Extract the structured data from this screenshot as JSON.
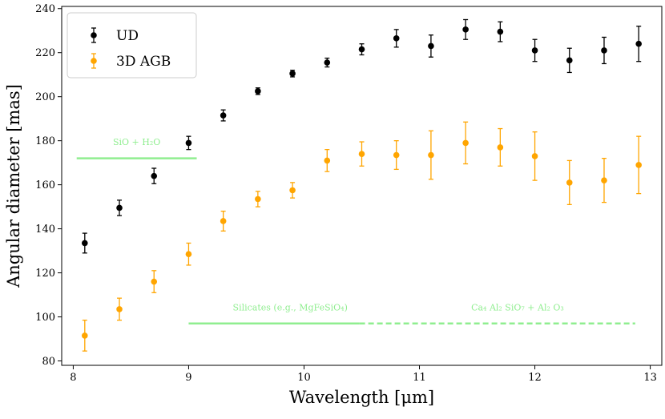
{
  "chart_data": {
    "type": "scatter",
    "xlabel": "Wavelength [μm]",
    "ylabel": "Angular diameter [mas]",
    "xlim": [
      7.9,
      13.1
    ],
    "ylim": [
      78,
      241
    ],
    "xticks": [
      8,
      9,
      10,
      11,
      12,
      13
    ],
    "yticks": [
      80,
      100,
      120,
      140,
      160,
      180,
      200,
      220,
      240
    ],
    "legend_position": "top-left",
    "series": [
      {
        "name": "UD",
        "color": "#000000",
        "x": [
          8.1,
          8.4,
          8.7,
          9.0,
          9.3,
          9.6,
          9.9,
          10.2,
          10.5,
          10.8,
          11.1,
          11.4,
          11.7,
          12.0,
          12.3,
          12.6,
          12.9
        ],
        "y": [
          133.5,
          149.5,
          164,
          179,
          191.5,
          202.5,
          210.5,
          215.5,
          221.5,
          226.5,
          223,
          230.5,
          229.5,
          221,
          216.5,
          221,
          224
        ],
        "err": [
          4.5,
          3.5,
          3.5,
          3,
          2.5,
          1.5,
          1.5,
          2,
          2.5,
          4,
          5,
          4.5,
          4.5,
          5,
          5.5,
          6,
          8
        ]
      },
      {
        "name": "3D AGB",
        "color": "#ffa500",
        "x": [
          8.1,
          8.4,
          8.7,
          9.0,
          9.3,
          9.6,
          9.9,
          10.2,
          10.5,
          10.8,
          11.1,
          11.4,
          11.7,
          12.0,
          12.3,
          12.6,
          12.9
        ],
        "y": [
          91.5,
          103.5,
          116,
          128.5,
          143.5,
          153.5,
          157.5,
          171,
          174,
          173.5,
          173.5,
          179,
          177,
          173,
          161,
          162,
          169
        ],
        "err": [
          7,
          5,
          5,
          5,
          4.5,
          3.5,
          3.5,
          5,
          5.5,
          6.5,
          11,
          9.5,
          8.5,
          11,
          10,
          10,
          13
        ]
      }
    ],
    "annotations": [
      {
        "text": "SiO + H₂O",
        "x_start": 8.03,
        "x_end": 9.07,
        "y": 172,
        "text_x": 8.55,
        "text_y": 178,
        "style": "solid",
        "color": "#90ee90"
      },
      {
        "text": "Silicates (e.g., MgFeSiO₄)",
        "x_start": 9.0,
        "x_end": 10.48,
        "y": 97,
        "text_x": 9.88,
        "text_y": 103,
        "style": "solid",
        "color": "#90ee90"
      },
      {
        "text": "Ca₄ Al₂ SiO₇  +  Al₂ O₃",
        "x_start": 10.48,
        "x_end": 12.87,
        "y": 97,
        "text_x": 11.85,
        "text_y": 103,
        "style": "dashed",
        "color": "#90ee90"
      }
    ]
  }
}
